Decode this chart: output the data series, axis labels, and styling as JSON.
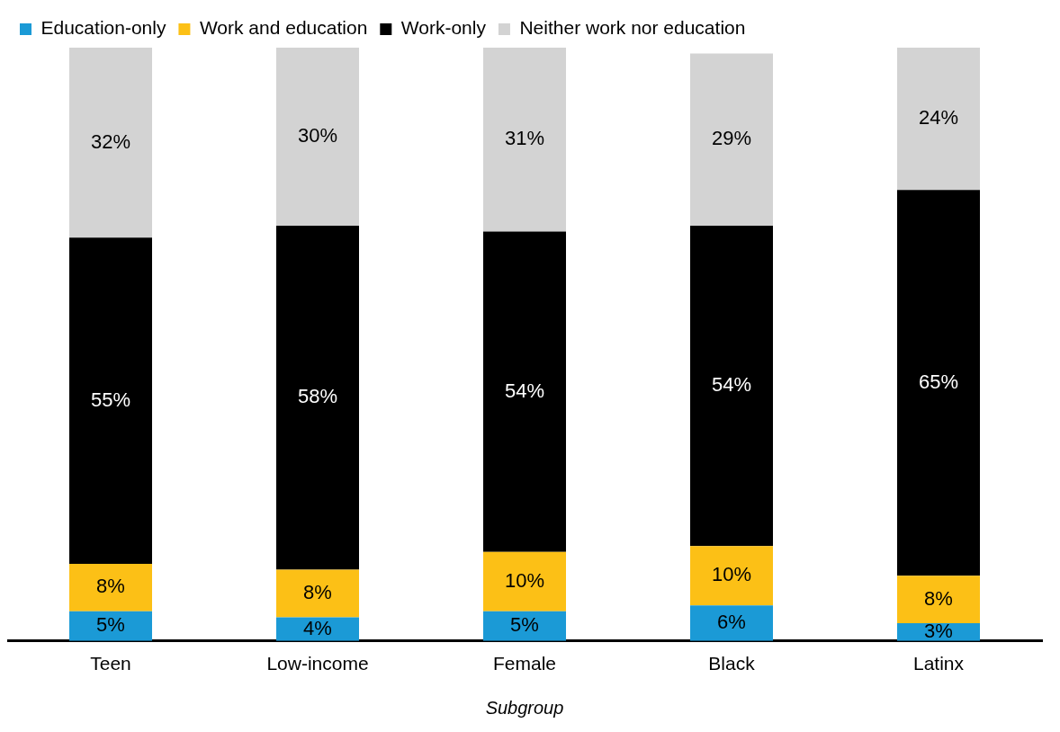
{
  "chart_data": {
    "type": "bar",
    "stacked": true,
    "xlabel": "Subgroup",
    "categories": [
      "Teen",
      "Low-income",
      "Female",
      "Black",
      "Latinx"
    ],
    "series": [
      {
        "name": "Education-only",
        "color": "#1b9ad6",
        "values": [
          5,
          4,
          5,
          6,
          3
        ],
        "value_labels": [
          "5%",
          "4%",
          "5%",
          "6%",
          "3%"
        ]
      },
      {
        "name": "Work and education",
        "color": "#fcc016",
        "values": [
          8,
          8,
          10,
          10,
          8
        ],
        "value_labels": [
          "8%",
          "8%",
          "10%",
          "10%",
          "8%"
        ]
      },
      {
        "name": "Work-only",
        "color": "#000000",
        "values": [
          55,
          58,
          54,
          54,
          65
        ],
        "value_labels": [
          "55%",
          "58%",
          "54%",
          "54%",
          "65%"
        ]
      },
      {
        "name": "Neither work nor education",
        "color": "#d3d3d3",
        "values": [
          32,
          30,
          31,
          29,
          24
        ],
        "value_labels": [
          "32%",
          "30%",
          "31%",
          "29%",
          "24%"
        ]
      }
    ],
    "tick_labels": "x",
    "legend": "top left",
    "grid": false
  }
}
